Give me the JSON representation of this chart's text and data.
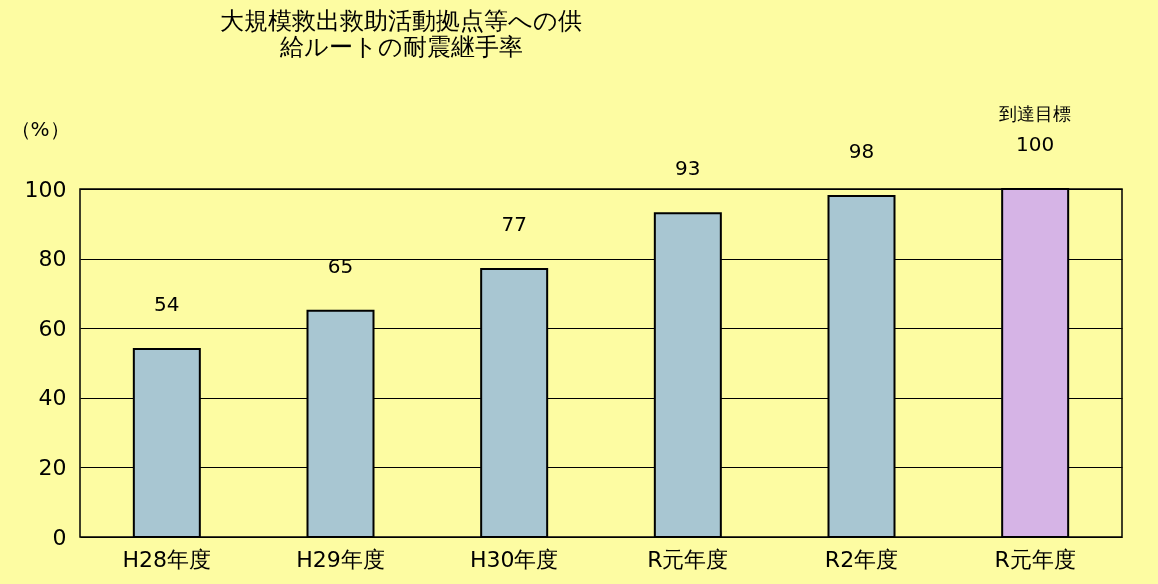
{
  "chart_data": {
    "type": "bar",
    "title": "大規模救出救助活動拠点等への供給ルートの耐震継手率",
    "ylabel": "（%）",
    "categories": [
      "H28年度",
      "H29年度",
      "H30年度",
      "R元年度",
      "R2年度",
      "R元年度"
    ],
    "values": [
      54,
      65,
      77,
      93,
      98,
      100
    ],
    "colors": [
      "#a8c6d2",
      "#a8c6d2",
      "#a8c6d2",
      "#a8c6d2",
      "#a8c6d2",
      "#d6b4e6"
    ],
    "ylim": [
      0,
      100
    ],
    "yticks": [
      0,
      20,
      40,
      60,
      80,
      100
    ],
    "grid": "y",
    "data_labels": true,
    "annotations": [
      "到達目標"
    ]
  }
}
